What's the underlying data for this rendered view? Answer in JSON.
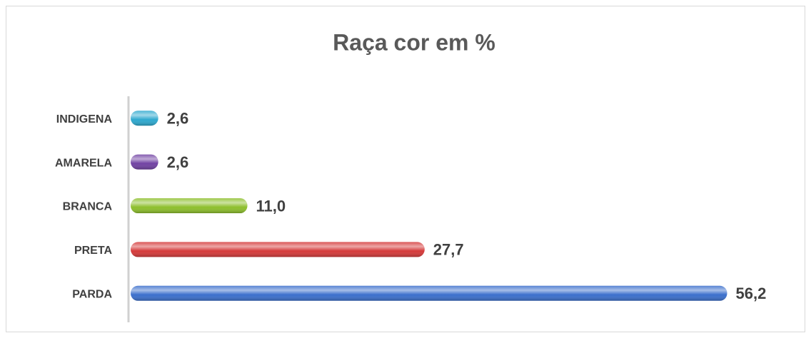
{
  "chart_data": {
    "type": "barh",
    "title": "Raça cor em %",
    "categories": [
      "INDIGENA",
      "AMARELA",
      "BRANCA",
      "PRETA",
      "PARDA"
    ],
    "values": [
      2.6,
      2.6,
      11.0,
      27.7,
      56.2
    ],
    "value_labels": [
      "2,6",
      "2,6",
      "11,0",
      "27,7",
      "56,2"
    ],
    "colors": [
      "#2ea9cf",
      "#7142a3",
      "#8dbf2c",
      "#d53a3a",
      "#3b6fcc"
    ],
    "xlim": [
      0,
      60
    ]
  }
}
